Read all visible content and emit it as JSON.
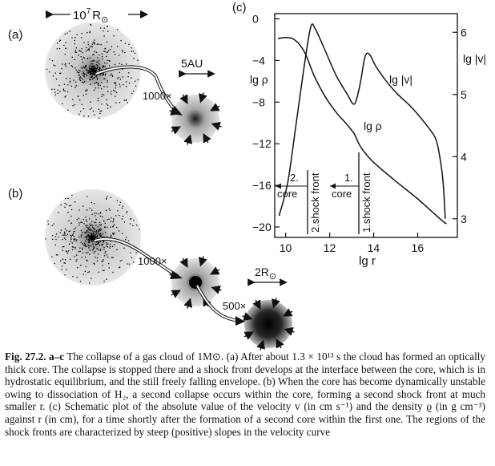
{
  "figure": {
    "panel_a": {
      "label": "(a)",
      "scale_cloud": "10",
      "scale_cloud_exp": "7",
      "scale_cloud_unit": "R",
      "scale_cloud_sub": "⊙",
      "scale_core": "5AU",
      "zoom": "1000×"
    },
    "panel_b": {
      "label": "(b)",
      "zoom1": "1000×",
      "zoom2": "500×",
      "scale_core": "2R",
      "scale_core_sub": "⊙"
    },
    "panel_c": {
      "label": "(c)"
    }
  },
  "chart_data": {
    "type": "line",
    "xlabel": "lg r",
    "ylabel_left": "lg ρ",
    "ylabel_right": "lg |v|",
    "xlim": [
      9.5,
      17.8
    ],
    "ylim_left": [
      -21,
      0.5
    ],
    "ylim_right": [
      2.7,
      6.3
    ],
    "x_ticks": [
      10,
      12,
      14,
      16
    ],
    "y_ticks_left": [
      "0",
      "−4",
      "−8",
      "−12",
      "−16",
      "−20"
    ],
    "y_ticks_left_values": [
      0,
      -4,
      -8,
      -12,
      -16,
      -20
    ],
    "y_ticks_right": [
      3,
      4,
      5,
      6
    ],
    "series": [
      {
        "name": "lg |v|",
        "axis": "right",
        "points": [
          [
            9.7,
            3.05
          ],
          [
            10.1,
            3.6
          ],
          [
            10.5,
            4.6
          ],
          [
            10.9,
            5.6
          ],
          [
            11.15,
            6.1
          ],
          [
            11.35,
            6.05
          ],
          [
            11.8,
            5.7
          ],
          [
            12.3,
            5.3
          ],
          [
            12.8,
            5.0
          ],
          [
            13.05,
            4.85
          ],
          [
            13.2,
            4.9
          ],
          [
            13.4,
            5.2
          ],
          [
            13.6,
            5.6
          ],
          [
            13.8,
            5.65
          ],
          [
            14.1,
            5.45
          ],
          [
            14.6,
            5.2
          ],
          [
            15.1,
            5.0
          ],
          [
            15.7,
            4.8
          ],
          [
            16.3,
            4.55
          ],
          [
            16.8,
            4.3
          ],
          [
            17.0,
            4.0
          ],
          [
            17.15,
            3.6
          ],
          [
            17.25,
            3.0
          ]
        ]
      },
      {
        "name": "lg ρ",
        "axis": "left",
        "points": [
          [
            9.65,
            -1.9
          ],
          [
            10.0,
            -1.8
          ],
          [
            10.3,
            -1.9
          ],
          [
            10.6,
            -2.4
          ],
          [
            10.9,
            -3.4
          ],
          [
            11.3,
            -5.5
          ],
          [
            11.8,
            -7.5
          ],
          [
            12.3,
            -9.0
          ],
          [
            12.8,
            -10.2
          ],
          [
            13.1,
            -11.0
          ],
          [
            13.3,
            -11.9
          ],
          [
            13.5,
            -12.6
          ],
          [
            14.0,
            -13.8
          ],
          [
            15.0,
            -15.6
          ],
          [
            16.0,
            -17.3
          ],
          [
            17.0,
            -19.2
          ],
          [
            17.3,
            -19.7
          ]
        ]
      }
    ],
    "annotations": {
      "core2_num": "2.",
      "core2_label": "core",
      "shock2": "2.shock front",
      "core1_num": "1.",
      "core1_label": "core",
      "shock1": "1.shock front"
    }
  },
  "caption": {
    "label": "Fig. 27.2. a–c",
    "text": "The collapse of a gas cloud of 1M⊙. (a) After about 1.3 × 10¹³ s the cloud has formed an optically thick core. The collapse is stopped there and a shock front develops at the interface between the core, which is in hydrostatic equilibrium, and the still freely falling envelope. (b) When the core has become dynamically unstable owing to dissociation of H₂, a second collapse occurs within the core, forming a second shock front at much smaller r. (c) Schematic plot of the absolute value of the velocity v (in cm s⁻¹) and the density ϱ (in g cm⁻³) against r (in cm), for a time shortly after the formation of a second core within the first one. The regions of the shock fronts are characterized by steep (positive) slopes in the velocity curve"
  }
}
